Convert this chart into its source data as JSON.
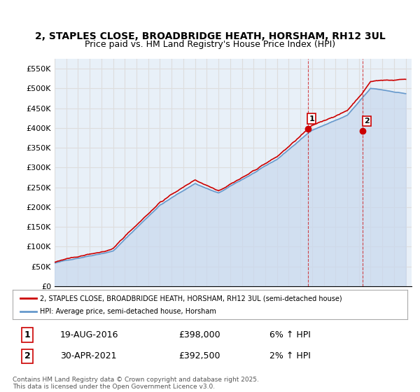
{
  "title": "2, STAPLES CLOSE, BROADBRIDGE HEATH, HORSHAM, RH12 3UL",
  "subtitle": "Price paid vs. HM Land Registry's House Price Index (HPI)",
  "ylabel_ticks": [
    "£0",
    "£50K",
    "£100K",
    "£150K",
    "£200K",
    "£250K",
    "£300K",
    "£350K",
    "£400K",
    "£450K",
    "£500K",
    "£550K"
  ],
  "ytick_values": [
    0,
    50000,
    100000,
    150000,
    200000,
    250000,
    300000,
    350000,
    400000,
    450000,
    500000,
    550000
  ],
  "ylim": [
    0,
    575000
  ],
  "sale1_date": "19-AUG-2016",
  "sale1_price": 398000,
  "sale1_hpi": "6% ↑ HPI",
  "sale2_date": "30-APR-2021",
  "sale2_price": 392500,
  "sale2_hpi": "2% ↑ HPI",
  "legend_line1": "2, STAPLES CLOSE, BROADBRIDGE HEATH, HORSHAM, RH12 3UL (semi-detached house)",
  "legend_line2": "HPI: Average price, semi-detached house, Horsham",
  "footer": "Contains HM Land Registry data © Crown copyright and database right 2025.\nThis data is licensed under the Open Government Licence v3.0.",
  "line_color_price": "#cc0000",
  "line_color_hpi": "#6699cc",
  "hpi_fill_color": "#c8d8ee",
  "background_color": "#ffffff",
  "grid_color": "#dddddd",
  "sale1_x": 2016.63,
  "sale2_x": 2021.33
}
